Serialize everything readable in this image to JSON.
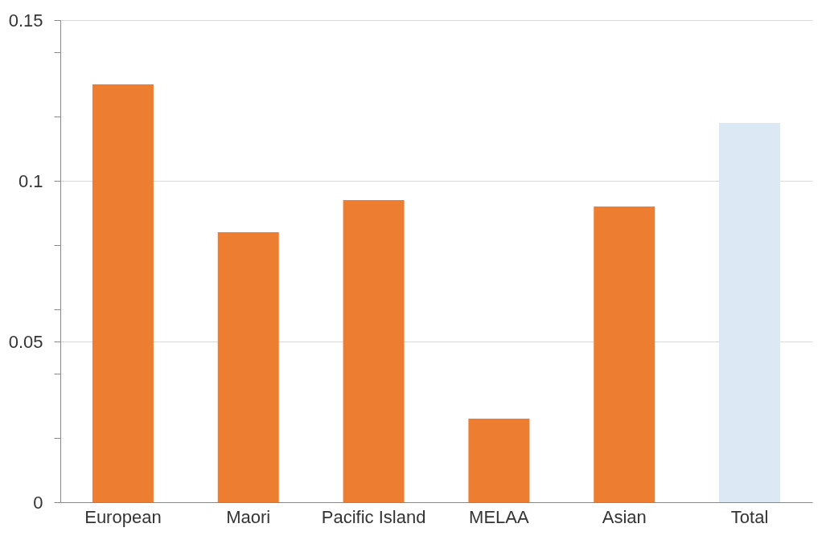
{
  "chart_data": {
    "type": "bar",
    "categories": [
      "European",
      "Maori",
      "Pacific Island",
      "MELAA",
      "Asian",
      "Total"
    ],
    "values": [
      0.13,
      0.084,
      0.094,
      0.026,
      0.092,
      0.118
    ],
    "colors": [
      "#ed7d31",
      "#ed7d31",
      "#ed7d31",
      "#ed7d31",
      "#ed7d31",
      "#dde8f5"
    ],
    "ylim": [
      0,
      0.15
    ],
    "yticks": [
      0,
      {
        "value": 0.02,
        "label": null
      },
      {
        "value": 0.04,
        "label": null
      },
      0.05,
      {
        "value": 0.06,
        "label": null
      },
      {
        "value": 0.08,
        "label": null
      },
      0.1,
      {
        "value": 0.12,
        "label": null
      },
      {
        "value": 0.14,
        "label": null
      },
      0.15
    ],
    "grid": "y"
  }
}
